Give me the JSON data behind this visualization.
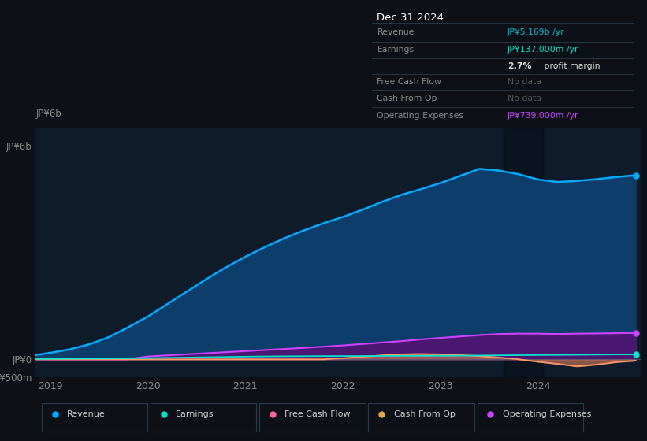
{
  "bg_color": "#0d1117",
  "plot_bg_color": "#0d1b2a",
  "grid_color": "#1e3050",
  "ylim": [
    -500,
    6500
  ],
  "xtick_labels": [
    "2019",
    "2020",
    "2021",
    "2022",
    "2023",
    "2024"
  ],
  "ytick_labels": [
    "-JP¥500m",
    "JP¥0",
    "JP¥6b"
  ],
  "years": [
    2018.85,
    2019.0,
    2019.2,
    2019.4,
    2019.6,
    2019.8,
    2020.0,
    2020.2,
    2020.4,
    2020.6,
    2020.8,
    2021.0,
    2021.2,
    2021.4,
    2021.6,
    2021.8,
    2022.0,
    2022.2,
    2022.4,
    2022.6,
    2022.8,
    2023.0,
    2023.2,
    2023.4,
    2023.6,
    2023.8,
    2024.0,
    2024.2,
    2024.4,
    2024.6,
    2024.8,
    2025.0
  ],
  "revenue": [
    120,
    180,
    280,
    420,
    620,
    900,
    1200,
    1550,
    1900,
    2250,
    2580,
    2880,
    3150,
    3400,
    3620,
    3820,
    4000,
    4200,
    4420,
    4620,
    4780,
    4950,
    5150,
    5350,
    5300,
    5200,
    5050,
    4980,
    5010,
    5060,
    5120,
    5169
  ],
  "earnings": [
    10,
    12,
    15,
    18,
    22,
    28,
    35,
    42,
    50,
    58,
    66,
    74,
    80,
    84,
    87,
    89,
    90,
    92,
    94,
    96,
    97,
    98,
    100,
    105,
    110,
    115,
    118,
    122,
    126,
    130,
    134,
    137
  ],
  "free_cash_flow": [
    0,
    0,
    0,
    0,
    0,
    0,
    0,
    0,
    0,
    0,
    0,
    0,
    0,
    0,
    0,
    0,
    30,
    70,
    110,
    140,
    150,
    140,
    120,
    90,
    50,
    0,
    -70,
    -130,
    -200,
    -150,
    -80,
    -40
  ],
  "operating_expenses": [
    0,
    0,
    0,
    0,
    0,
    0,
    80,
    110,
    140,
    170,
    200,
    230,
    260,
    290,
    320,
    355,
    390,
    430,
    470,
    510,
    560,
    600,
    640,
    680,
    710,
    720,
    720,
    710,
    720,
    725,
    732,
    739
  ],
  "revenue_line_color": "#00aaff",
  "revenue_fill_color": "#0d3d6b",
  "earnings_color": "#00e5cc",
  "fcf_color": "#ff9966",
  "fcf_fill_color": "#cc7755",
  "op_exp_line_color": "#cc44ff",
  "op_exp_fill_color": "#4a1870",
  "dot_revenue": "#00aaff",
  "dot_earnings": "#00e5cc",
  "dot_op_exp": "#cc44ff",
  "legend_items": [
    {
      "label": "Revenue",
      "color": "#00aaff"
    },
    {
      "label": "Earnings",
      "color": "#00e5cc"
    },
    {
      "label": "Free Cash Flow",
      "color": "#ff6699"
    },
    {
      "label": "Cash From Op",
      "color": "#ddaa44"
    },
    {
      "label": "Operating Expenses",
      "color": "#cc44ff"
    }
  ]
}
